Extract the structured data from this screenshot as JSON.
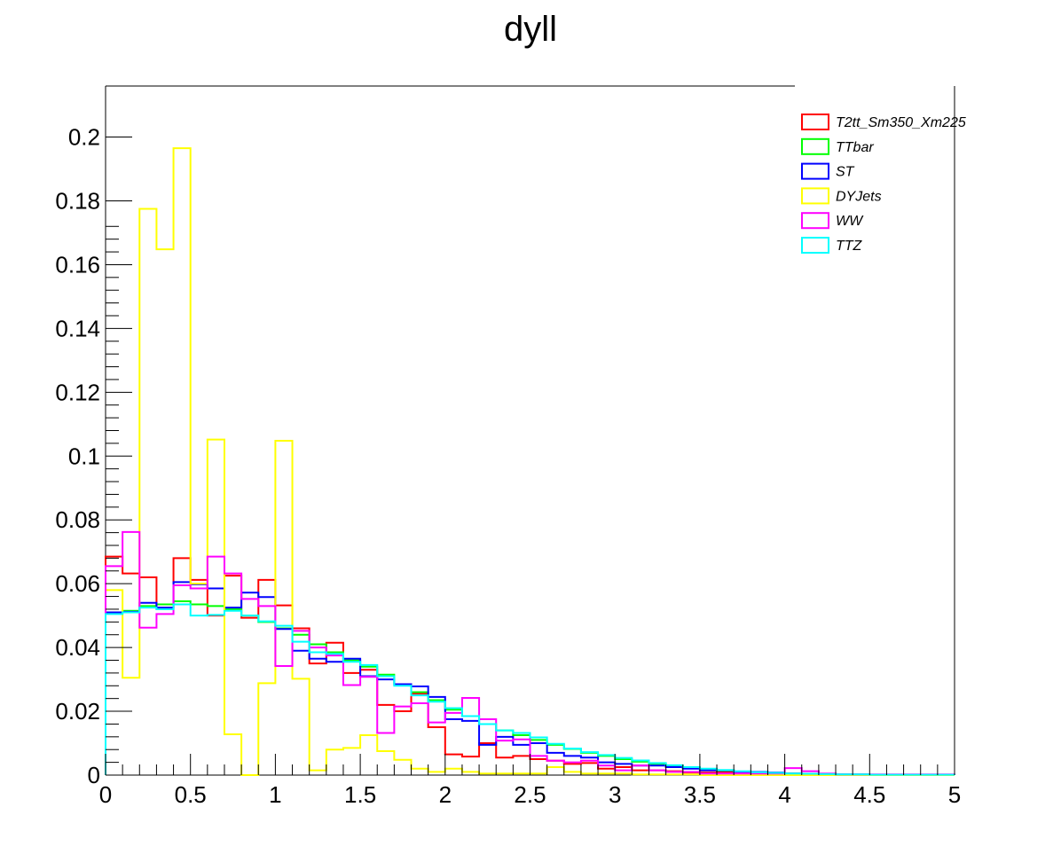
{
  "chart_data": {
    "type": "histogram",
    "title": "dyll",
    "xlabel": "",
    "ylabel": "",
    "xlim": [
      0,
      5
    ],
    "ylim": [
      0,
      0.216
    ],
    "bin_width": 0.1,
    "x_ticks": [
      "0",
      "0.5",
      "1",
      "1.5",
      "2",
      "2.5",
      "3",
      "3.5",
      "4",
      "4.5",
      "5"
    ],
    "y_ticks": [
      "0",
      "0.02",
      "0.04",
      "0.06",
      "0.08",
      "0.1",
      "0.12",
      "0.14",
      "0.16",
      "0.18",
      "0.2"
    ],
    "legend_position": "top-right",
    "series": [
      {
        "name": "T2tt_Sm350_Xm225",
        "color": "#ff0000",
        "values": [
          0.0685,
          0.0632,
          0.062,
          0.052,
          0.068,
          0.0612,
          0.05,
          0.0625,
          0.0493,
          0.0612,
          0.0532,
          0.046,
          0.035,
          0.0415,
          0.032,
          0.033,
          0.022,
          0.02,
          0.0255,
          0.015,
          0.0065,
          0.0058,
          0.01,
          0.0055,
          0.006,
          0.005,
          0.0045,
          0.0035,
          0.0038,
          0.002,
          0.0025,
          0.0015,
          0.0015,
          0.0012,
          0.0008,
          0.0008,
          0.001,
          0.0005,
          0.0005,
          0.0005,
          0.0005,
          0,
          0,
          0,
          0,
          0,
          0,
          0,
          0,
          0
        ]
      },
      {
        "name": "TTbar",
        "color": "#00ff00",
        "values": [
          0.051,
          0.0515,
          0.053,
          0.0535,
          0.0545,
          0.0535,
          0.053,
          0.052,
          0.05,
          0.048,
          0.046,
          0.044,
          0.041,
          0.0385,
          0.036,
          0.034,
          0.0315,
          0.0285,
          0.026,
          0.0235,
          0.0205,
          0.0185,
          0.016,
          0.014,
          0.0125,
          0.011,
          0.0095,
          0.0082,
          0.007,
          0.006,
          0.005,
          0.0042,
          0.0035,
          0.0028,
          0.0022,
          0.0018,
          0.0014,
          0.0011,
          0.0008,
          0.0006,
          0.0005,
          0.0004,
          0.0003,
          0.0002,
          0.0002,
          0.0001,
          0.0001,
          0.0001,
          0.0001,
          0.0001
        ]
      },
      {
        "name": "ST",
        "color": "#0000ff",
        "values": [
          0.051,
          0.0512,
          0.054,
          0.0525,
          0.0605,
          0.0598,
          0.0585,
          0.0525,
          0.0572,
          0.0558,
          0.0458,
          0.039,
          0.0365,
          0.0355,
          0.0365,
          0.031,
          0.03,
          0.0285,
          0.0278,
          0.0245,
          0.0175,
          0.017,
          0.0095,
          0.012,
          0.0095,
          0.01,
          0.007,
          0.006,
          0.0055,
          0.004,
          0.0035,
          0.003,
          0.003,
          0.0025,
          0.002,
          0.0015,
          0.0015,
          0.001,
          0.001,
          0.0008,
          0.0005,
          0.0004,
          0.0003,
          0.0002,
          0.0002,
          0.0001,
          0.0001,
          0.0001,
          0.0001,
          0.0001
        ]
      },
      {
        "name": "DYJets",
        "color": "#ffff00",
        "values": [
          0.058,
          0.0305,
          0.1775,
          0.1648,
          0.1965,
          0.06,
          0.1052,
          0.0128,
          0,
          0.0288,
          0.1048,
          0.0302,
          0.0015,
          0.008,
          0.0085,
          0.0125,
          0.0075,
          0.0048,
          0.002,
          0.001,
          0.002,
          0.001,
          0.0005,
          0.0005,
          0.0005,
          0.0005,
          0.0025,
          0.001,
          0.0005,
          0.0005,
          0.0005,
          0.0002,
          0.0002,
          0.0002,
          0.0002,
          0,
          0,
          0,
          0,
          0,
          0,
          0,
          0,
          0,
          0,
          0,
          0,
          0,
          0,
          0
        ]
      },
      {
        "name": "WW",
        "color": "#ff00ff",
        "values": [
          0.0655,
          0.0762,
          0.0462,
          0.0505,
          0.0595,
          0.0585,
          0.0685,
          0.0632,
          0.0552,
          0.053,
          0.0342,
          0.0452,
          0.04,
          0.0375,
          0.0282,
          0.0308,
          0.0132,
          0.0215,
          0.0225,
          0.0165,
          0.0195,
          0.0242,
          0.0175,
          0.0108,
          0.0112,
          0.006,
          0.0045,
          0.004,
          0.0045,
          0.003,
          0.0015,
          0.003,
          0.0015,
          0.001,
          0.001,
          0.0005,
          0.0005,
          0.0005,
          0.0005,
          0.0005,
          0.0022,
          0.0012,
          0.0005,
          0.0002,
          0.0002,
          0.0002,
          0.0002,
          0.0002,
          0.0002,
          0.0002
        ]
      },
      {
        "name": "TTZ",
        "color": "#00ffff",
        "values": [
          0.0505,
          0.051,
          0.0525,
          0.052,
          0.0535,
          0.05,
          0.0502,
          0.0515,
          0.05,
          0.0482,
          0.0468,
          0.0418,
          0.0385,
          0.038,
          0.0355,
          0.0345,
          0.031,
          0.028,
          0.025,
          0.023,
          0.021,
          0.0185,
          0.016,
          0.014,
          0.0132,
          0.0118,
          0.0098,
          0.0083,
          0.0072,
          0.0063,
          0.0054,
          0.0046,
          0.0038,
          0.0031,
          0.0025,
          0.002,
          0.0016,
          0.0012,
          0.0009,
          0.0007,
          0.0005,
          0.0004,
          0.0003,
          0.0002,
          0.0002,
          0.0001,
          0.0001,
          0.0001,
          0.0001,
          0.0001
        ]
      }
    ]
  }
}
